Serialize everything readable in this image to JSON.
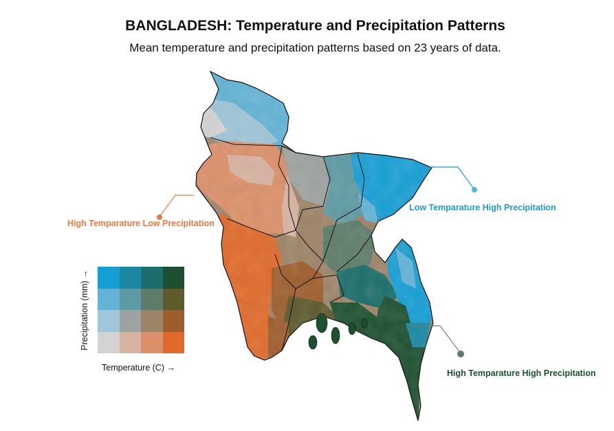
{
  "title": "BANGLADESH: Temperature and Precipitation Patterns",
  "subtitle": "Mean temperature and precipitation patterns based on 23 years of data.",
  "annotations": {
    "high_temp_low_precip": {
      "label": "High Temparature Low Precipitation",
      "color": "#e07a4a"
    },
    "low_temp_high_precip": {
      "label": "Low Temparature High Precipitation",
      "color": "#1a9bd3"
    },
    "high_temp_high_precip": {
      "label": "High Temparature High Precipitation",
      "color": "#1f4d33"
    }
  },
  "legend": {
    "x_label": "Temperature (C) →",
    "y_label": "Precipitation (mm) →",
    "colors_top_to_bottom": [
      [
        "#169fd5",
        "#1a88a3",
        "#1b6e6a",
        "#1c5030"
      ],
      [
        "#62b3d6",
        "#5e9aa2",
        "#5d7c69",
        "#5e5a2c"
      ],
      [
        "#9fc6d9",
        "#9ea39f",
        "#9d8467",
        "#9e5e2c"
      ],
      [
        "#d3d3d3",
        "#d7b3a1",
        "#dc906a",
        "#e16a2b"
      ]
    ]
  }
}
